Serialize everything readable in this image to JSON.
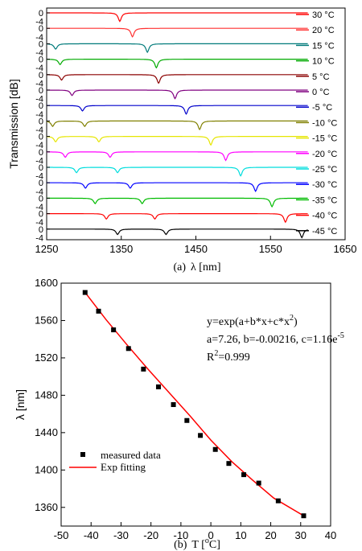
{
  "chart_data": [
    {
      "type": "line",
      "caption_prefix": "(a)",
      "xlabel": "λ [nm]",
      "ylabel": "Transmission [dB]",
      "xlim": [
        1250,
        1650
      ],
      "xticks": [
        1250,
        1350,
        1450,
        1550,
        1650
      ],
      "offset_tick_labels": [
        "0",
        "-4"
      ],
      "legend_position": "right",
      "series": [
        {
          "name": "30 °C",
          "color": "#ff0000",
          "dips": [
            1348
          ]
        },
        {
          "name": "20 °C",
          "color": "#ff3030",
          "dips": [
            1365
          ]
        },
        {
          "name": "15 °C",
          "color": "#007a7a",
          "dips": [
            1262,
            1385
          ]
        },
        {
          "name": "10 °C",
          "color": "#00aa00",
          "dips": [
            1268,
            1397
          ]
        },
        {
          "name": "5 °C",
          "color": "#8b0000",
          "dips": [
            1270,
            1400
          ]
        },
        {
          "name": "0 °C",
          "color": "#800080",
          "dips": [
            1284,
            1422
          ]
        },
        {
          "name": "-5 °C",
          "color": "#0000cc",
          "dips": [
            1298,
            1437
          ]
        },
        {
          "name": "-10 °C",
          "color": "#808000",
          "dips": [
            1258,
            1301,
            1455
          ]
        },
        {
          "name": "-15 °C",
          "color": "#e6e600",
          "dips": [
            1262,
            1320,
            1470
          ]
        },
        {
          "name": "-20 °C",
          "color": "#ff00ff",
          "dips": [
            1275,
            1335,
            1490
          ]
        },
        {
          "name": "-25 °C",
          "color": "#00dddd",
          "dips": [
            1290,
            1345,
            1510
          ]
        },
        {
          "name": "-30 °C",
          "color": "#0000ff",
          "dips": [
            1302,
            1362,
            1530
          ]
        },
        {
          "name": "-35 °C",
          "color": "#00bb00",
          "dips": [
            1315,
            1378,
            1552
          ]
        },
        {
          "name": "-40 °C",
          "color": "#ff0000",
          "dips": [
            1330,
            1395,
            1570
          ]
        },
        {
          "name": "-45 °C",
          "color": "#000000",
          "dips": [
            1345,
            1410,
            1592
          ]
        }
      ]
    },
    {
      "type": "scatter",
      "caption_prefix": "(b)",
      "xlabel_base": "T [",
      "xlabel_sup": "o",
      "xlabel_end": "C]",
      "ylabel": "λ [nm]",
      "xlim": [
        -50,
        40
      ],
      "ylim": [
        1340,
        1600
      ],
      "xticks": [
        -50,
        -40,
        -30,
        -20,
        -10,
        0,
        10,
        20,
        30,
        40
      ],
      "yticks": [
        1360,
        1400,
        1440,
        1480,
        1520,
        1560,
        1600
      ],
      "legend_position": "bottom-left",
      "series": [
        {
          "name": "measured data",
          "marker": "square",
          "color": "#000000",
          "x": [
            -42,
            -37.5,
            -32.5,
            -27.5,
            -22.5,
            -17.5,
            -12.5,
            -8,
            -3.5,
            1.5,
            6,
            11,
            16,
            22.5,
            31
          ],
          "y": [
            1590,
            1570,
            1550,
            1530,
            1508,
            1489,
            1470,
            1453,
            1437,
            1422,
            1407,
            1395,
            1386,
            1367,
            1351
          ]
        },
        {
          "name": "Exp fitting",
          "color": "#ff0000",
          "x": [
            -42,
            -35,
            -28,
            -21,
            -14,
            -7,
            0,
            7,
            14,
            21,
            31
          ],
          "y": [
            1590,
            1561,
            1534,
            1508,
            1483,
            1458,
            1432,
            1409,
            1389,
            1370,
            1351
          ]
        }
      ],
      "annotation": {
        "eq_base": "y=exp(a+b*x+c*x",
        "eq_sup": "2",
        "eq_end": ")",
        "params_base": "a=7.26, b=-0.00216, c=1.16e",
        "params_sup": "-5",
        "r2_base": "R",
        "r2_sup": "2",
        "r2_end": "=0.999"
      }
    }
  ]
}
